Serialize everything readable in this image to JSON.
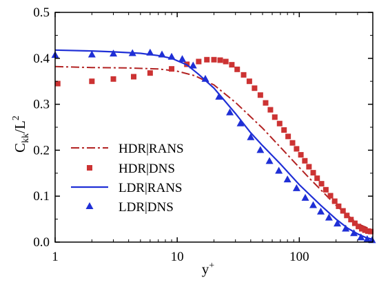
{
  "chart_data": {
    "type": "line",
    "x_scale": "log",
    "xlim": [
      1,
      400
    ],
    "ylim": [
      0,
      0.5
    ],
    "x_ticks": [
      {
        "value": 1,
        "label": "1"
      },
      {
        "value": 10,
        "label": "10"
      },
      {
        "value": 100,
        "label": "100"
      }
    ],
    "y_ticks": [
      {
        "value": 0.0,
        "label": "0.0"
      },
      {
        "value": 0.1,
        "label": "0.1"
      },
      {
        "value": 0.2,
        "label": "0.2"
      },
      {
        "value": 0.3,
        "label": "0.3"
      },
      {
        "value": 0.4,
        "label": "0.4"
      },
      {
        "value": 0.5,
        "label": "0.5"
      }
    ],
    "xlabel": {
      "base": "y",
      "sup": "+"
    },
    "ylabel": {
      "base": "C",
      "sub": "kk",
      "mid": "/L",
      "sup": "2"
    },
    "grid": false,
    "legend_position": "left",
    "series": [
      {
        "name": "HDR|RANS",
        "style": "dash-dot-line",
        "color": "#b22222",
        "x": [
          1,
          2,
          4,
          7,
          10,
          14,
          20,
          30,
          50,
          80,
          120,
          200,
          300,
          400
        ],
        "y": [
          0.382,
          0.38,
          0.379,
          0.377,
          0.372,
          0.362,
          0.342,
          0.304,
          0.248,
          0.19,
          0.14,
          0.08,
          0.04,
          0.026
        ]
      },
      {
        "name": "HDR|DNS",
        "style": "square-markers",
        "color": "#cc3333",
        "x": [
          1.05,
          2,
          3,
          4.4,
          6,
          9,
          12,
          15,
          17.5,
          20,
          22.5,
          25,
          28,
          31,
          35,
          39,
          43,
          48,
          53,
          58,
          63,
          69,
          75,
          81,
          88,
          95,
          103,
          111,
          120,
          130,
          140,
          152,
          165,
          180,
          195,
          210,
          228,
          245,
          265,
          285,
          305,
          325,
          345,
          365,
          385
        ],
        "y": [
          0.345,
          0.35,
          0.355,
          0.36,
          0.368,
          0.377,
          0.387,
          0.393,
          0.397,
          0.397,
          0.396,
          0.393,
          0.386,
          0.376,
          0.364,
          0.35,
          0.335,
          0.32,
          0.303,
          0.288,
          0.272,
          0.258,
          0.244,
          0.23,
          0.216,
          0.203,
          0.19,
          0.177,
          0.164,
          0.151,
          0.139,
          0.127,
          0.114,
          0.101,
          0.089,
          0.078,
          0.068,
          0.058,
          0.049,
          0.041,
          0.034,
          0.029,
          0.026,
          0.024,
          0.023
        ]
      },
      {
        "name": "LDR|RANS",
        "style": "solid-line",
        "color": "#1f2fd6",
        "x": [
          1,
          2,
          3,
          5,
          7,
          9,
          12,
          15,
          20,
          30,
          40,
          50,
          70,
          100,
          150,
          200,
          250,
          300,
          350,
          400
        ],
        "y": [
          0.418,
          0.416,
          0.414,
          0.411,
          0.406,
          0.4,
          0.386,
          0.365,
          0.335,
          0.28,
          0.238,
          0.21,
          0.17,
          0.125,
          0.08,
          0.05,
          0.03,
          0.018,
          0.01,
          0.006
        ]
      },
      {
        "name": "LDR|DNS",
        "style": "triangle-markers",
        "color": "#1f2fd6",
        "x": [
          1,
          2,
          3,
          4.3,
          6,
          7.5,
          9,
          11,
          13.5,
          17,
          22,
          27,
          33,
          40,
          48,
          57,
          68,
          80,
          95,
          112,
          130,
          150,
          175,
          205,
          240,
          280,
          320,
          360,
          395
        ],
        "y": [
          0.407,
          0.408,
          0.41,
          0.411,
          0.412,
          0.408,
          0.403,
          0.398,
          0.384,
          0.355,
          0.316,
          0.282,
          0.258,
          0.228,
          0.2,
          0.176,
          0.155,
          0.136,
          0.117,
          0.096,
          0.08,
          0.066,
          0.053,
          0.04,
          0.029,
          0.019,
          0.01,
          0.006,
          0.004
        ]
      }
    ]
  }
}
